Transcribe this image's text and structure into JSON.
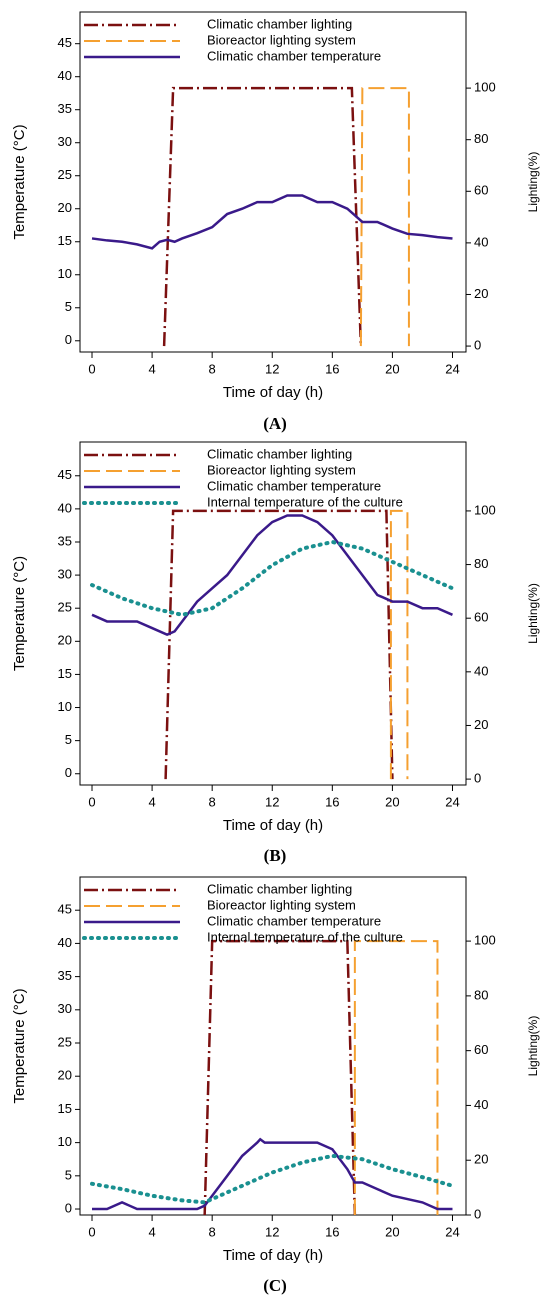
{
  "chart_data": [
    {
      "type": "line",
      "label": "(A)",
      "xlabel": "Time of day (h)",
      "ylabel": "Temperature (°C)",
      "y2label": "Lighting(%)",
      "xlim": [
        -0.8,
        24.9
      ],
      "xticks": [
        0,
        4,
        8,
        12,
        16,
        20,
        24
      ],
      "ylim": [
        -1.7,
        49.8
      ],
      "yticks": [
        0,
        5,
        10,
        15,
        20,
        25,
        30,
        35,
        40,
        45
      ],
      "y2lim": [
        -2.3,
        129.5
      ],
      "y2ticks": [
        0,
        20,
        40,
        60,
        80,
        100
      ],
      "series": [
        {
          "name": "Climatic chamber lighting",
          "color": "#7b1010",
          "style": "dashdot",
          "axis": "y2",
          "x": [
            4.8,
            5.4,
            17.3,
            17.9
          ],
          "values": [
            0,
            100,
            100,
            0
          ]
        },
        {
          "name": "Bioreactor lighting system",
          "color": "#f5a030",
          "style": "dash",
          "axis": "y2",
          "x": [
            17.9,
            18.0,
            21.1,
            21.1
          ],
          "values": [
            0,
            100,
            100,
            0
          ]
        },
        {
          "name": "Climatic chamber temperature",
          "color": "#3a1a8a",
          "style": "solid",
          "axis": "y",
          "x": [
            0,
            1,
            2,
            3,
            4,
            4.5,
            5,
            5.5,
            6,
            7,
            8,
            9,
            10,
            11,
            12,
            13,
            14,
            15,
            16,
            17,
            17.5,
            18,
            19,
            20,
            21,
            22,
            23,
            24
          ],
          "values": [
            15.5,
            15.2,
            15,
            14.6,
            14,
            15,
            15.3,
            15,
            15.5,
            16.3,
            17.2,
            19.2,
            20,
            21,
            21,
            22,
            22,
            21,
            21,
            20,
            19,
            18,
            18,
            17,
            16.2,
            16,
            15.7,
            15.5
          ]
        }
      ]
    },
    {
      "type": "line",
      "label": "(B)",
      "xlabel": "Time of day (h)",
      "ylabel": "Temperature (°C)",
      "y2label": "Lighting(%)",
      "xlim": [
        -0.8,
        24.9
      ],
      "xticks": [
        0,
        4,
        8,
        12,
        16,
        20,
        24
      ],
      "ylim": [
        -1.7,
        50.1
      ],
      "yticks": [
        0,
        5,
        10,
        15,
        20,
        25,
        30,
        35,
        40,
        45
      ],
      "y2lim": [
        -2.2,
        125.7
      ],
      "y2ticks": [
        0,
        20,
        40,
        60,
        80,
        100
      ],
      "series": [
        {
          "name": "Climatic chamber lighting",
          "color": "#7b1010",
          "style": "dashdot",
          "axis": "y2",
          "x": [
            4.9,
            5.4,
            19.6,
            20.0
          ],
          "values": [
            0,
            100,
            100,
            0
          ]
        },
        {
          "name": "Bioreactor lighting system",
          "color": "#f5a030",
          "style": "dash",
          "axis": "y2",
          "x": [
            19.9,
            19.9,
            21,
            21
          ],
          "values": [
            0,
            100,
            100,
            0
          ]
        },
        {
          "name": "Climatic chamber temperature",
          "color": "#3a1a8a",
          "style": "solid",
          "axis": "y",
          "x": [
            0,
            1,
            2,
            3,
            4,
            5,
            5.5,
            6,
            7,
            8,
            9,
            10,
            11,
            12,
            13,
            14,
            15,
            16,
            17,
            18,
            19,
            20,
            21,
            22,
            23,
            24
          ],
          "values": [
            24,
            23,
            23,
            23,
            22,
            21,
            21.5,
            23,
            26,
            28,
            30,
            33,
            36,
            38,
            39,
            39,
            38,
            36,
            33,
            30,
            27,
            26,
            26,
            25,
            25,
            24
          ]
        },
        {
          "name": "Internal temperature of the culture",
          "color": "#1a9090",
          "style": "dot",
          "axis": "y",
          "x": [
            0,
            2,
            4,
            6,
            8,
            10,
            12,
            14,
            16,
            18,
            20,
            22,
            24
          ],
          "values": [
            28.5,
            26.5,
            25,
            24,
            25,
            28,
            31.5,
            34,
            35,
            34,
            32,
            30,
            28
          ]
        }
      ]
    },
    {
      "type": "line",
      "label": "(C)",
      "xlabel": "Time of day (h)",
      "ylabel": "Temperature (°C)",
      "y2label": "Lighting(%)",
      "xlim": [
        -0.8,
        24.9
      ],
      "xticks": [
        0,
        4,
        8,
        12,
        16,
        20,
        24
      ],
      "ylim": [
        -0.9,
        50
      ],
      "yticks": [
        0,
        5,
        10,
        15,
        20,
        25,
        30,
        35,
        40,
        45
      ],
      "y2lim": [
        0,
        123.4
      ],
      "y2ticks": [
        0,
        20,
        40,
        60,
        80,
        100
      ],
      "series": [
        {
          "name": "Climatic chamber lighting",
          "color": "#7b1010",
          "style": "dashdot",
          "axis": "y2",
          "x": [
            7.5,
            8.0,
            17.0,
            17.5
          ],
          "values": [
            0,
            100,
            100,
            0
          ]
        },
        {
          "name": "Bioreactor lighting system",
          "color": "#f5a030",
          "style": "dash",
          "axis": "y2",
          "x": [
            17.5,
            17.5,
            23,
            23
          ],
          "values": [
            0,
            100,
            100,
            0
          ]
        },
        {
          "name": "Climatic chamber temperature",
          "color": "#3a1a8a",
          "style": "solid",
          "axis": "y",
          "x": [
            0,
            1,
            2,
            3,
            4,
            5,
            6,
            7,
            7.5,
            8,
            9,
            10,
            11,
            11.2,
            11.5,
            13,
            15,
            16,
            17,
            17.5,
            18,
            19,
            20,
            21,
            22,
            23,
            24
          ],
          "values": [
            0,
            0,
            1,
            0,
            0,
            0,
            0,
            0,
            0.5,
            2,
            5,
            8,
            10,
            10.5,
            10,
            10,
            10,
            9,
            6,
            4,
            4,
            3,
            2,
            1.5,
            1,
            0,
            0
          ]
        },
        {
          "name": "Internal temperature of the culture",
          "color": "#1a9090",
          "style": "dot",
          "axis": "y",
          "x": [
            0,
            2,
            4,
            6,
            7.5,
            8,
            10,
            12,
            14,
            16,
            18,
            20,
            22,
            24
          ],
          "values": [
            3.8,
            3,
            2,
            1.3,
            1,
            1.5,
            3.5,
            5.5,
            7,
            8,
            7.5,
            6,
            4.8,
            3.5
          ]
        }
      ]
    }
  ]
}
